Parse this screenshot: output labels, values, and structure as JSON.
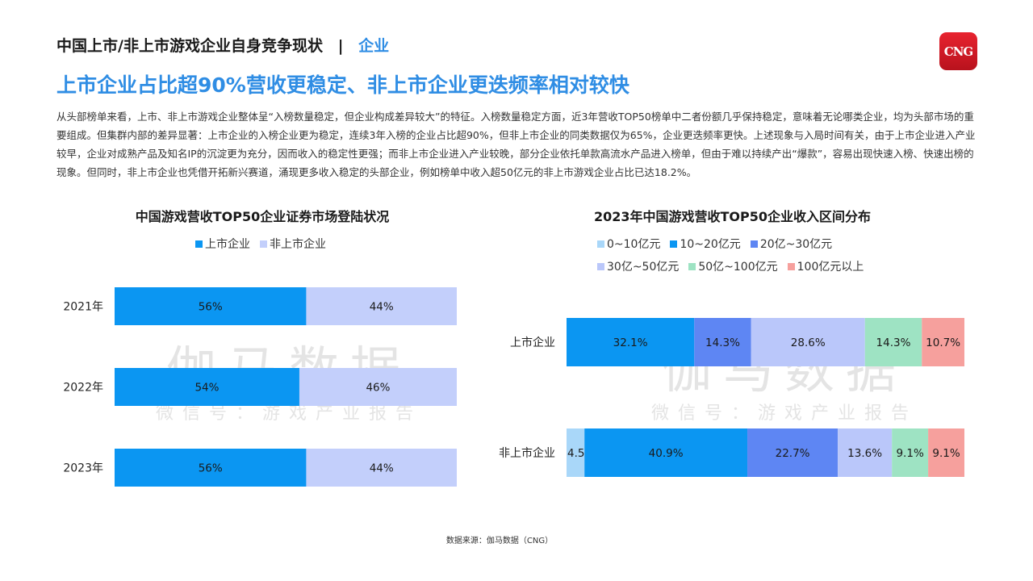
{
  "header": {
    "title": "中国上市/非上市游戏企业自身竞争现状",
    "separator": "|",
    "section": "企业",
    "logo_text": "CNG"
  },
  "headline": "上市企业占比超90%营收更稳定、非上市企业更迭频率相对较快",
  "paragraph": "从头部榜单来看，上市、非上市游戏企业整体呈“入榜数量稳定，但企业构成差异较大”的特征。入榜数量稳定方面，近3年营收TOP50榜单中二者份额几乎保持稳定，意味着无论哪类企业，均为头部市场的重要组成。但集群内部的差异显著：上市企业的入榜企业更为稳定，连续3年入榜的企业占比超90%，但非上市企业的同类数据仅为65%，企业更迭频率更快。上述现象与入局时间有关，由于上市企业进入产业较早，企业对成熟产品及知名IP的沉淀更为充分，因而收入的稳定性更强；而非上市企业进入产业较晚，部分企业依托单款高流水产品进入榜单，但由于难以持续产出“爆款”，容易出现快速入榜、快速出榜的现象。但同时，非上市企业也凭借开拓新兴赛道，涌现更多收入稳定的头部企业，例如榜单中收入超50亿元的非上市游戏企业占比已达18.2%。",
  "watermark": {
    "main": "伽马数据",
    "sub": "微信号：游戏产业报告"
  },
  "source": "数据来源：伽马数据（CNG）",
  "chart_data": [
    {
      "type": "bar",
      "orientation": "horizontal",
      "stacked": "percent",
      "title": "中国游戏营收TOP50企业证券市场登陆状况",
      "categories": [
        "2021年",
        "2022年",
        "2023年"
      ],
      "series": [
        {
          "name": "上市企业",
          "values": [
            56,
            54,
            56
          ],
          "labels": [
            "56%",
            "54%",
            "56%"
          ],
          "color": "#0b96f2"
        },
        {
          "name": "非上市企业",
          "values": [
            44,
            46,
            44
          ],
          "labels": [
            "44%",
            "46%",
            "44%"
          ],
          "color": "#c3cffb"
        }
      ],
      "legend": "top",
      "grid": false
    },
    {
      "type": "bar",
      "orientation": "horizontal",
      "stacked": "percent",
      "title": "2023年中国游戏营收TOP50企业收入区间分布",
      "categories": [
        "上市企业",
        "非上市企业"
      ],
      "series": [
        {
          "name": "0~10亿元",
          "values": [
            0.0,
            4.5
          ],
          "labels": [
            "0.0%",
            "4.5%"
          ],
          "color": "#a9d7f9"
        },
        {
          "name": "10~20亿元",
          "values": [
            32.1,
            40.9
          ],
          "labels": [
            "32.1%",
            "40.9%"
          ],
          "color": "#0b96f2"
        },
        {
          "name": "20亿~30亿元",
          "values": [
            14.3,
            22.7
          ],
          "labels": [
            "14.3%",
            "22.7%"
          ],
          "color": "#5e86f3"
        },
        {
          "name": "30亿~50亿元",
          "values": [
            28.6,
            13.6
          ],
          "labels": [
            "28.6%",
            "13.6%"
          ],
          "color": "#bac7fa"
        },
        {
          "name": "50亿~100亿元",
          "values": [
            14.3,
            9.1
          ],
          "labels": [
            "14.3%",
            "9.1%"
          ],
          "color": "#9ee3c3"
        },
        {
          "name": "100亿元以上",
          "values": [
            10.7,
            9.1
          ],
          "labels": [
            "10.7%",
            "9.1%"
          ],
          "color": "#f6a09d"
        }
      ],
      "legend": "top",
      "grid": false
    }
  ]
}
